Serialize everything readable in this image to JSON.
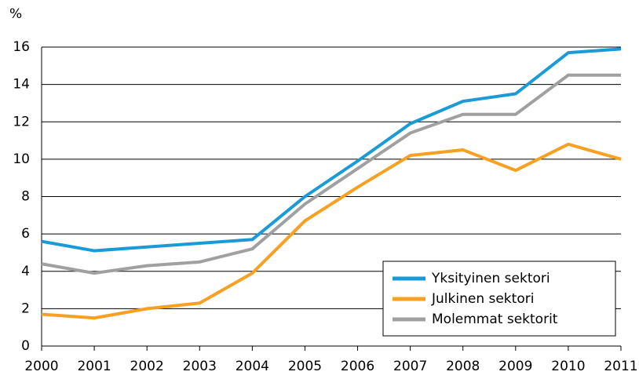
{
  "chart_data": {
    "type": "line",
    "y_label": "%",
    "x": [
      2000,
      2001,
      2002,
      2003,
      2004,
      2005,
      2006,
      2007,
      2008,
      2009,
      2010,
      2011
    ],
    "xlim": [
      2000,
      2011
    ],
    "xticks": [
      2000,
      2001,
      2002,
      2003,
      2004,
      2005,
      2006,
      2007,
      2008,
      2009,
      2010,
      2011
    ],
    "ylim": [
      0,
      16
    ],
    "yticks": [
      0,
      2,
      4,
      6,
      8,
      10,
      12,
      14,
      16
    ],
    "grid": true,
    "legend": "lower right",
    "series": [
      {
        "name": "Yksityinen sektori",
        "color": "#1a9bd7",
        "values": [
          5.6,
          5.1,
          5.3,
          5.5,
          5.7,
          8.0,
          9.9,
          11.9,
          13.1,
          13.5,
          15.7,
          15.9
        ]
      },
      {
        "name": "Julkinen sektori",
        "color": "#f7a021",
        "values": [
          1.7,
          1.5,
          2.0,
          2.3,
          3.9,
          6.7,
          8.5,
          10.2,
          10.5,
          9.4,
          10.8,
          10.0
        ]
      },
      {
        "name": "Molemmat sektorit",
        "color": "#a0a0a0",
        "values": [
          4.4,
          3.9,
          4.3,
          4.5,
          5.2,
          7.6,
          9.5,
          11.4,
          12.4,
          12.4,
          14.5,
          14.5
        ]
      }
    ]
  }
}
